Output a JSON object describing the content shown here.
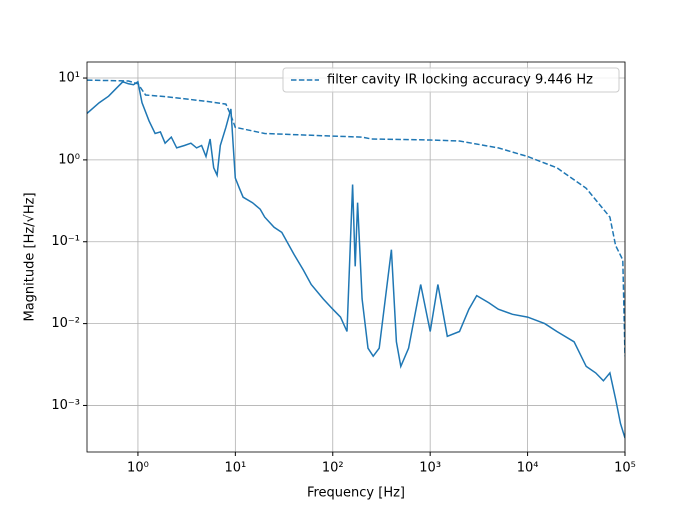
{
  "chart_data": {
    "type": "line",
    "xlabel": "Frequency [Hz]",
    "ylabel": "Magnitude [Hz/√Hz]",
    "xscale": "log",
    "yscale": "log",
    "grid": true,
    "legend": "upper right",
    "xlim": [
      0.3,
      100000
    ],
    "ylim": [
      0.00027,
      15.7
    ],
    "xticks": [
      {
        "value": 1,
        "label": "10⁰"
      },
      {
        "value": 10,
        "label": "10¹"
      },
      {
        "value": 100,
        "label": "10²"
      },
      {
        "value": 1000,
        "label": "10³"
      },
      {
        "value": 10000,
        "label": "10⁴"
      },
      {
        "value": 100000,
        "label": "10⁵"
      }
    ],
    "yticks": [
      {
        "value": 0.001,
        "label": "10⁻³"
      },
      {
        "value": 0.01,
        "label": "10⁻²"
      },
      {
        "value": 0.1,
        "label": "10⁻¹"
      },
      {
        "value": 1,
        "label": "10⁰"
      },
      {
        "value": 10,
        "label": "10¹"
      }
    ],
    "series": [
      {
        "color": "#1f77b4",
        "style": "solid",
        "x": [
          0.3,
          0.4,
          0.5,
          0.6,
          0.7,
          0.8,
          0.9,
          1.0,
          1.1,
          1.3,
          1.5,
          1.7,
          1.9,
          2.2,
          2.5,
          3,
          3.5,
          4,
          4.5,
          5,
          5.5,
          6,
          6.5,
          7,
          8,
          9,
          9.5,
          10,
          11,
          12,
          15,
          18,
          20,
          25,
          30,
          40,
          50,
          60,
          80,
          100,
          120,
          140,
          160,
          170,
          180,
          200,
          230,
          260,
          300,
          400,
          450,
          500,
          600,
          800,
          1000,
          1200,
          1500,
          2000,
          2500,
          3000,
          4000,
          5000,
          7000,
          10000,
          15000,
          20000,
          30000,
          40000,
          50000,
          60000,
          70000,
          80000,
          90000,
          100000
        ],
        "values": [
          3.7,
          5,
          6,
          7.5,
          9,
          8.5,
          8.3,
          9,
          5,
          3,
          2.1,
          2.2,
          1.6,
          1.9,
          1.4,
          1.5,
          1.6,
          1.4,
          1.5,
          1.1,
          1.8,
          0.8,
          0.65,
          1.5,
          2.5,
          4.2,
          1.5,
          0.6,
          0.45,
          0.35,
          0.3,
          0.25,
          0.2,
          0.15,
          0.13,
          0.07,
          0.045,
          0.03,
          0.02,
          0.015,
          0.012,
          0.008,
          0.5,
          0.05,
          0.3,
          0.02,
          0.005,
          0.004,
          0.005,
          0.08,
          0.006,
          0.003,
          0.005,
          0.03,
          0.008,
          0.03,
          0.007,
          0.008,
          0.015,
          0.022,
          0.018,
          0.015,
          0.013,
          0.012,
          0.01,
          0.008,
          0.006,
          0.003,
          0.0025,
          0.002,
          0.0025,
          0.0012,
          0.0006,
          0.0004
        ]
      },
      {
        "name": "filter cavity IR locking accuracy 9.446 Hz",
        "color": "#1f77b4",
        "style": "dashed",
        "x": [
          0.3,
          0.8,
          1,
          1.2,
          2,
          5,
          8,
          9,
          10,
          20,
          100,
          200,
          250,
          1000,
          2000,
          5000,
          10000,
          20000,
          40000,
          70000,
          80000,
          95000,
          100000
        ],
        "values": [
          9.446,
          9.2,
          8.5,
          6.2,
          5.9,
          5.2,
          4.8,
          3.5,
          2.5,
          2.1,
          1.95,
          1.9,
          1.8,
          1.75,
          1.7,
          1.4,
          1.1,
          0.8,
          0.45,
          0.2,
          0.09,
          0.06,
          0.004
        ]
      }
    ]
  }
}
